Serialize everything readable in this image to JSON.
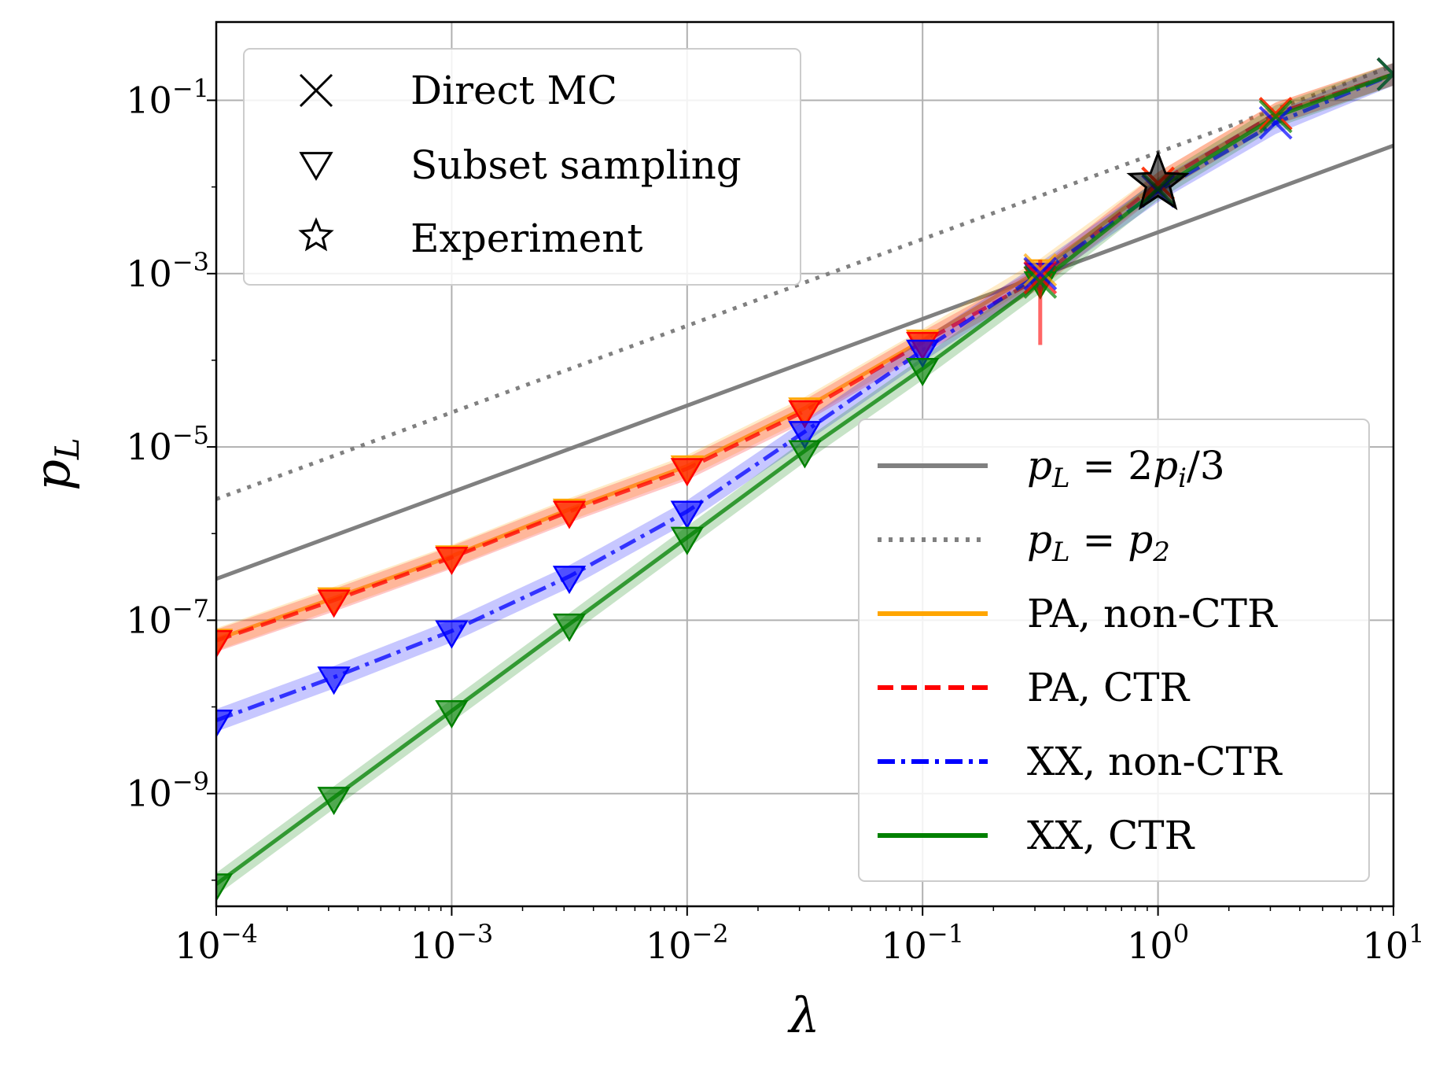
{
  "chart_data": {
    "type": "line",
    "scale": {
      "x": "log",
      "y": "log"
    },
    "xlabel": "λ",
    "ylabel": "p_L",
    "xlim": [
      0.0001,
      10
    ],
    "ylim": [
      5e-11,
      0.8
    ],
    "grid": true,
    "x_ticks": [
      {
        "value": 0.0001,
        "base": "10",
        "exp": "−4"
      },
      {
        "value": 0.001,
        "base": "10",
        "exp": "−3"
      },
      {
        "value": 0.01,
        "base": "10",
        "exp": "−2"
      },
      {
        "value": 0.1,
        "base": "10",
        "exp": "−1"
      },
      {
        "value": 1,
        "base": "10",
        "exp": "0"
      },
      {
        "value": 10,
        "base": "10",
        "exp": "1"
      }
    ],
    "y_ticks": [
      {
        "value": 1e-09,
        "base": "10",
        "exp": "−9"
      },
      {
        "value": 1e-07,
        "base": "10",
        "exp": "−7"
      },
      {
        "value": 1e-05,
        "base": "10",
        "exp": "−5"
      },
      {
        "value": 0.001,
        "base": "10",
        "exp": "−3"
      },
      {
        "value": 0.1,
        "base": "10",
        "exp": "−1"
      }
    ],
    "reference_lines": [
      {
        "name": "p_L = 2p_i/3",
        "label_parts": [
          "p",
          "L",
          " = 2",
          "p",
          "i",
          "/3"
        ],
        "style": "solid",
        "color": "#808080",
        "points": [
          [
            0.0001,
            3e-07
          ],
          [
            10,
            0.03
          ]
        ]
      },
      {
        "name": "p_L = p_2",
        "label_parts": [
          "p",
          "L",
          " = ",
          "p",
          "2"
        ],
        "style": "dotted",
        "color": "#808080",
        "points": [
          [
            0.0001,
            2.5e-06
          ],
          [
            10,
            0.25
          ]
        ]
      }
    ],
    "series": [
      {
        "name": "PA, non-CTR",
        "color": "#ffa500",
        "style": "solid",
        "x": [
          0.0001,
          0.000316,
          0.001,
          0.00316,
          0.01,
          0.0316,
          0.1,
          0.316,
          1,
          3.16,
          10
        ],
        "y": [
          6e-08,
          1.8e-07,
          5.5e-07,
          1.9e-06,
          6e-06,
          2.8e-05,
          0.00017,
          0.0011,
          0.011,
          0.07,
          0.2
        ]
      },
      {
        "name": "PA, CTR",
        "color": "#ff0000",
        "style": "dashed",
        "x": [
          0.0001,
          0.000316,
          0.001,
          0.00316,
          0.01,
          0.0316,
          0.1,
          0.316,
          1,
          3.16,
          10
        ],
        "y": [
          5.8e-08,
          1.7e-07,
          5.3e-07,
          1.8e-06,
          5.6e-06,
          2.6e-05,
          0.00016,
          0.0009,
          0.011,
          0.07,
          0.2
        ]
      },
      {
        "name": "XX, non-CTR",
        "color": "#0000ff",
        "style": "dashdot",
        "x": [
          0.0001,
          0.000316,
          0.001,
          0.00316,
          0.01,
          0.0316,
          0.1,
          0.316,
          1,
          3.16,
          10
        ],
        "y": [
          7e-09,
          2.2e-08,
          7.5e-08,
          3.2e-07,
          1.8e-06,
          1.5e-05,
          0.00013,
          0.001,
          0.009,
          0.055,
          0.2
        ]
      },
      {
        "name": "XX, CTR",
        "color": "#008000",
        "style": "solid",
        "x": [
          0.0001,
          0.000316,
          0.001,
          0.00316,
          0.01,
          0.0316,
          0.1,
          0.316,
          1,
          3.16,
          10
        ],
        "y": [
          9e-11,
          9e-10,
          9e-09,
          9e-08,
          9e-07,
          9e-06,
          8e-05,
          0.0008,
          0.0095,
          0.065,
          0.2
        ]
      }
    ],
    "subset_sampling_x": [
      0.0001,
      0.000316,
      0.001,
      0.00316,
      0.01,
      0.0316,
      0.1,
      0.316
    ],
    "direct_mc_x": [
      0.316,
      1,
      3.16,
      10
    ],
    "experiment": [
      {
        "x": 1,
        "y": 0.011
      }
    ],
    "legends": {
      "markers": [
        {
          "marker": "x",
          "label": "Direct MC"
        },
        {
          "marker": "triangle",
          "label": "Subset sampling"
        },
        {
          "marker": "star",
          "label": "Experiment"
        }
      ],
      "lines": [
        "p_L = 2p_i/3",
        "p_L = p_2",
        "PA, non-CTR",
        "PA, CTR",
        "XX, non-CTR",
        "XX, CTR"
      ]
    }
  }
}
